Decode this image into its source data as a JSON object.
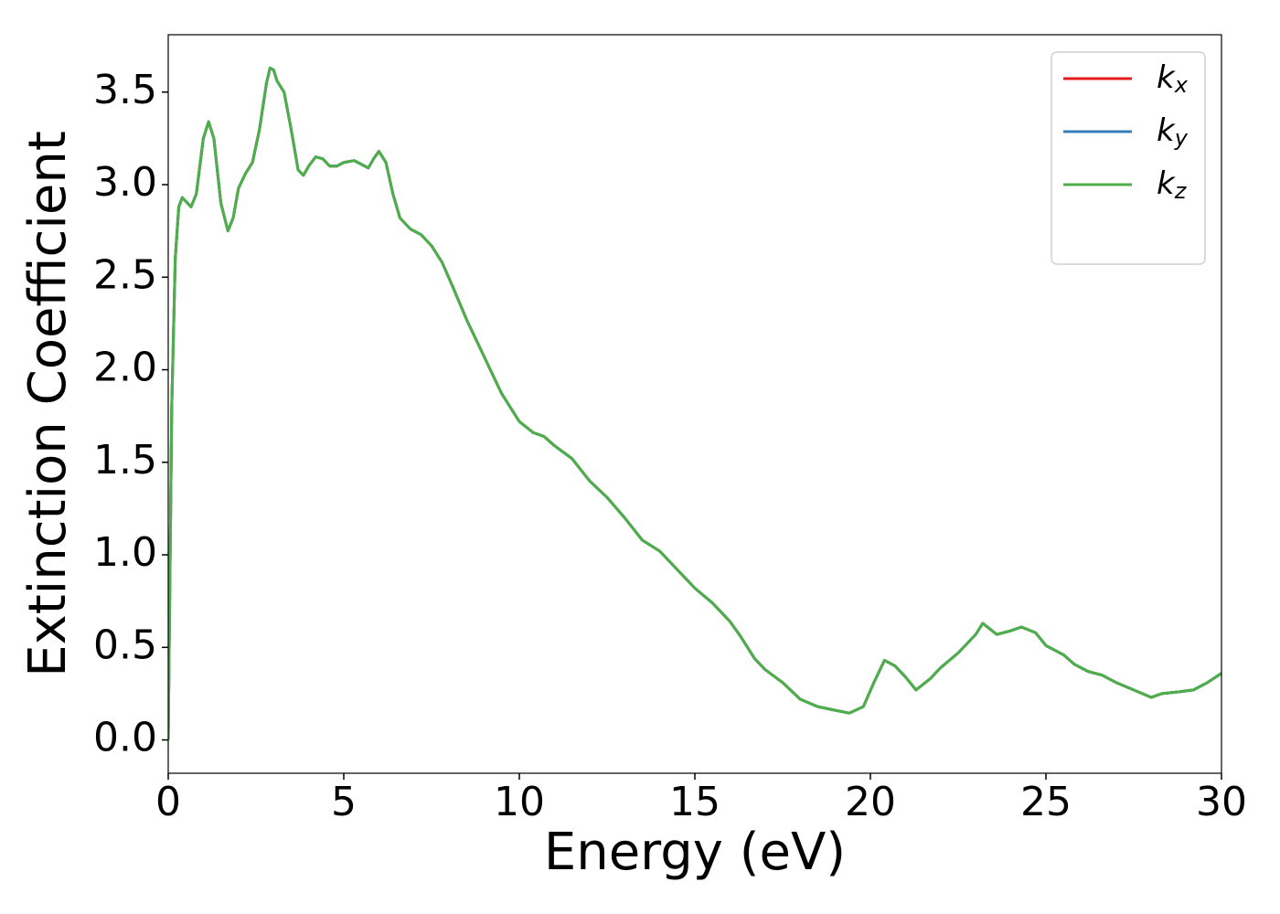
{
  "chart_data": {
    "type": "line",
    "xlabel": "Energy (eV)",
    "ylabel": "Extinction Coefficient",
    "x": [
      0,
      0.1,
      0.2,
      0.3,
      0.4,
      0.5,
      0.65,
      0.8,
      1.0,
      1.15,
      1.3,
      1.5,
      1.7,
      1.85,
      2.0,
      2.2,
      2.4,
      2.6,
      2.8,
      2.9,
      3.0,
      3.1,
      3.3,
      3.5,
      3.7,
      3.85,
      4.0,
      4.2,
      4.4,
      4.6,
      4.8,
      5.0,
      5.3,
      5.5,
      5.7,
      5.85,
      6.0,
      6.2,
      6.4,
      6.6,
      6.9,
      7.2,
      7.5,
      7.8,
      8.1,
      8.5,
      9.0,
      9.5,
      10.0,
      10.4,
      10.7,
      11.0,
      11.5,
      12.0,
      12.5,
      13.0,
      13.5,
      14.0,
      14.5,
      15.0,
      15.5,
      16.0,
      16.3,
      16.7,
      17.0,
      17.5,
      18.0,
      18.5,
      19.0,
      19.4,
      19.8,
      20.1,
      20.4,
      20.7,
      21.0,
      21.3,
      21.7,
      22.0,
      22.5,
      23.0,
      23.2,
      23.4,
      23.6,
      24.0,
      24.3,
      24.7,
      25.0,
      25.5,
      25.8,
      26.2,
      26.6,
      27.0,
      27.5,
      28.0,
      28.3,
      28.8,
      29.2,
      29.6,
      30.0
    ],
    "series": [
      {
        "name": "kx",
        "color": "#e41a1c",
        "values": [
          0,
          1.8,
          2.6,
          2.88,
          2.93,
          2.91,
          2.88,
          2.95,
          3.25,
          3.34,
          3.25,
          2.9,
          2.75,
          2.82,
          2.98,
          3.06,
          3.12,
          3.3,
          3.55,
          3.63,
          3.62,
          3.56,
          3.5,
          3.3,
          3.08,
          3.05,
          3.1,
          3.15,
          3.14,
          3.1,
          3.1,
          3.12,
          3.13,
          3.11,
          3.09,
          3.14,
          3.18,
          3.12,
          2.95,
          2.82,
          2.76,
          2.73,
          2.67,
          2.58,
          2.45,
          2.27,
          2.07,
          1.87,
          1.72,
          1.66,
          1.64,
          1.59,
          1.52,
          1.4,
          1.31,
          1.2,
          1.08,
          1.02,
          0.92,
          0.82,
          0.74,
          0.64,
          0.56,
          0.44,
          0.38,
          0.31,
          0.22,
          0.18,
          0.16,
          0.145,
          0.18,
          0.31,
          0.43,
          0.4,
          0.34,
          0.27,
          0.33,
          0.39,
          0.47,
          0.57,
          0.63,
          0.6,
          0.57,
          0.59,
          0.61,
          0.58,
          0.51,
          0.46,
          0.41,
          0.37,
          0.35,
          0.31,
          0.27,
          0.23,
          0.25,
          0.26,
          0.27,
          0.31,
          0.36
        ]
      },
      {
        "name": "ky",
        "color": "#377eb8",
        "values": [
          0,
          1.8,
          2.6,
          2.88,
          2.93,
          2.91,
          2.88,
          2.95,
          3.25,
          3.34,
          3.25,
          2.9,
          2.75,
          2.82,
          2.98,
          3.06,
          3.12,
          3.3,
          3.55,
          3.63,
          3.62,
          3.56,
          3.5,
          3.3,
          3.08,
          3.05,
          3.1,
          3.15,
          3.14,
          3.1,
          3.1,
          3.12,
          3.13,
          3.11,
          3.09,
          3.14,
          3.18,
          3.12,
          2.95,
          2.82,
          2.76,
          2.73,
          2.67,
          2.58,
          2.45,
          2.27,
          2.07,
          1.87,
          1.72,
          1.66,
          1.64,
          1.59,
          1.52,
          1.4,
          1.31,
          1.2,
          1.08,
          1.02,
          0.92,
          0.82,
          0.74,
          0.64,
          0.56,
          0.44,
          0.38,
          0.31,
          0.22,
          0.18,
          0.16,
          0.145,
          0.18,
          0.31,
          0.43,
          0.4,
          0.34,
          0.27,
          0.33,
          0.39,
          0.47,
          0.57,
          0.63,
          0.6,
          0.57,
          0.59,
          0.61,
          0.58,
          0.51,
          0.46,
          0.41,
          0.37,
          0.35,
          0.31,
          0.27,
          0.23,
          0.25,
          0.26,
          0.27,
          0.31,
          0.36
        ]
      },
      {
        "name": "kz",
        "color": "#4daf4a",
        "values": [
          0,
          1.8,
          2.6,
          2.88,
          2.93,
          2.91,
          2.88,
          2.95,
          3.25,
          3.34,
          3.25,
          2.9,
          2.75,
          2.82,
          2.98,
          3.06,
          3.12,
          3.3,
          3.55,
          3.63,
          3.62,
          3.56,
          3.5,
          3.3,
          3.08,
          3.05,
          3.1,
          3.15,
          3.14,
          3.1,
          3.1,
          3.12,
          3.13,
          3.11,
          3.09,
          3.14,
          3.18,
          3.12,
          2.95,
          2.82,
          2.76,
          2.73,
          2.67,
          2.58,
          2.45,
          2.27,
          2.07,
          1.87,
          1.72,
          1.66,
          1.64,
          1.59,
          1.52,
          1.4,
          1.31,
          1.2,
          1.08,
          1.02,
          0.92,
          0.82,
          0.74,
          0.64,
          0.56,
          0.44,
          0.38,
          0.31,
          0.22,
          0.18,
          0.16,
          0.145,
          0.18,
          0.31,
          0.43,
          0.4,
          0.34,
          0.27,
          0.33,
          0.39,
          0.47,
          0.57,
          0.63,
          0.6,
          0.57,
          0.59,
          0.61,
          0.58,
          0.51,
          0.46,
          0.41,
          0.37,
          0.35,
          0.31,
          0.27,
          0.23,
          0.25,
          0.26,
          0.27,
          0.31,
          0.36
        ]
      }
    ],
    "xlim": [
      0,
      30
    ],
    "xticks": [
      0,
      5,
      10,
      15,
      20,
      25,
      30
    ],
    "ylim": [
      -0.18,
      3.81
    ],
    "yticks": [
      {
        "value": 0,
        "label": "0.0"
      },
      0.5,
      {
        "value": 1,
        "label": "1.0"
      },
      1.5,
      {
        "value": 2,
        "label": "2.0"
      },
      2.5,
      {
        "value": 3,
        "label": "3.0"
      },
      3.5
    ],
    "legend": "upper right",
    "grid": false
  }
}
